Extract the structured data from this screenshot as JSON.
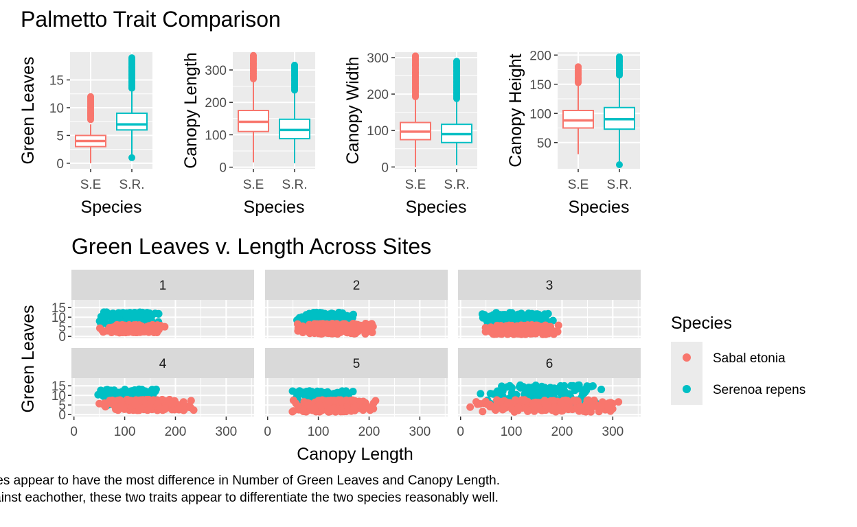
{
  "figure_title": "Palmetto Trait Comparison",
  "facet_title": "Green Leaves v. Length Across Sites",
  "caption_lines": [
    "ecies appear to have the most difference in Number of Green Leaves and Canopy Length.",
    "against eachother, these two traits appear to differentiate the two species reasonably well."
  ],
  "colors": {
    "sabal": "#F8766D",
    "serenoa": "#00BFC4",
    "panel": "#EBEBEB",
    "strip": "#D9D9D9",
    "grid": "#FFFFFF",
    "tick": "#4D4D4D"
  },
  "chart_data": [
    {
      "type": "box",
      "xlabel": "Species",
      "ylabel": "Green Leaves",
      "categories": [
        "S.E",
        "S.R."
      ],
      "yticks": [
        0,
        5,
        10,
        15
      ],
      "ylim": [
        -1,
        20
      ],
      "boxes": [
        {
          "q1": 3,
          "median": 4,
          "q3": 5,
          "wlo": 0,
          "whi": 7,
          "outliers": [
            8.7,
            9,
            11,
            12
          ]
        },
        {
          "q1": 6,
          "median": 7,
          "q3": 9,
          "wlo": 1.5,
          "whi": 13,
          "outliers": [
            1,
            14,
            15,
            16,
            17,
            18,
            19
          ]
        }
      ]
    },
    {
      "type": "box",
      "xlabel": "Species",
      "ylabel": "Canopy Length",
      "categories": [
        "S.E",
        "S.R."
      ],
      "yticks": [
        0,
        100,
        200,
        300
      ],
      "ylim": [
        -5,
        355
      ],
      "boxes": [
        {
          "q1": 110,
          "median": 140,
          "q3": 175,
          "wlo": 15,
          "whi": 270,
          "outliers": [
            275,
            290,
            305,
            320,
            335,
            345
          ]
        },
        {
          "q1": 88,
          "median": 115,
          "q3": 148,
          "wlo": 12,
          "whi": 235,
          "outliers": [
            240,
            255,
            270,
            285,
            300,
            315
          ]
        }
      ]
    },
    {
      "type": "box",
      "xlabel": "Species",
      "ylabel": "Canopy Width",
      "categories": [
        "S.E",
        "S.R."
      ],
      "yticks": [
        0,
        100,
        200,
        300
      ],
      "ylim": [
        -5,
        315
      ],
      "boxes": [
        {
          "q1": 75,
          "median": 97,
          "q3": 122,
          "wlo": 0,
          "whi": 190,
          "outliers": [
            195,
            210,
            225,
            240,
            260,
            280,
            305
          ]
        },
        {
          "q1": 67,
          "median": 90,
          "q3": 117,
          "wlo": 5,
          "whi": 185,
          "outliers": [
            190,
            205,
            220,
            235,
            250,
            265,
            290
          ]
        }
      ]
    },
    {
      "type": "box",
      "xlabel": "Species",
      "ylabel": "Canopy Height",
      "categories": [
        "S.E",
        "S.R."
      ],
      "yticks": [
        50,
        100,
        150,
        200
      ],
      "ylim": [
        5,
        205
      ],
      "boxes": [
        {
          "q1": 75,
          "median": 88,
          "q3": 105,
          "wlo": 30,
          "whi": 150,
          "outliers": [
            155,
            160,
            168,
            175,
            180
          ]
        },
        {
          "q1": 73,
          "median": 90,
          "q3": 110,
          "wlo": 18,
          "whi": 163,
          "outliers": [
            12,
            168,
            175,
            182,
            190,
            197
          ]
        }
      ]
    },
    {
      "type": "scatter",
      "title": "Green Leaves v. Length Across Sites",
      "xlabel": "Canopy Length",
      "ylabel": "Green Leaves",
      "xticks": [
        0,
        100,
        200,
        300
      ],
      "yticks": [
        0,
        5,
        10,
        15
      ],
      "xlim": [
        -5,
        355
      ],
      "ylim": [
        -1,
        19
      ],
      "legend_title": "Species",
      "series": [
        {
          "name": "Sabal etonia"
        },
        {
          "name": "Serenoa repens"
        }
      ],
      "facets": [
        {
          "label": "1",
          "sabal": {
            "xmin": 50,
            "xmax": 185,
            "ymin": 1,
            "ymax": 7
          },
          "serenoa": {
            "xmin": 45,
            "xmax": 175,
            "ymin": 5,
            "ymax": 14
          }
        },
        {
          "label": "2",
          "sabal": {
            "xmin": 40,
            "xmax": 220,
            "ymin": 0,
            "ymax": 8
          },
          "serenoa": {
            "xmin": 45,
            "xmax": 180,
            "ymin": 4,
            "ymax": 14
          }
        },
        {
          "label": "3",
          "sabal": {
            "xmin": 40,
            "xmax": 200,
            "ymin": 0,
            "ymax": 7
          },
          "serenoa": {
            "xmin": 30,
            "xmax": 185,
            "ymin": 3,
            "ymax": 14
          }
        },
        {
          "label": "4",
          "sabal": {
            "xmin": 45,
            "xmax": 240,
            "ymin": 1,
            "ymax": 9
          },
          "serenoa": {
            "xmin": 45,
            "xmax": 175,
            "ymin": 3,
            "ymax": 15
          }
        },
        {
          "label": "5",
          "sabal": {
            "xmin": 40,
            "xmax": 220,
            "ymin": 0,
            "ymax": 9
          },
          "serenoa": {
            "xmin": 40,
            "xmax": 175,
            "ymin": 3,
            "ymax": 14
          }
        },
        {
          "label": "6",
          "sabal": {
            "xmin": 15,
            "xmax": 345,
            "ymin": 0,
            "ymax": 9
          },
          "serenoa": {
            "xmin": 15,
            "xmax": 300,
            "ymin": 1,
            "ymax": 18
          }
        }
      ]
    }
  ]
}
